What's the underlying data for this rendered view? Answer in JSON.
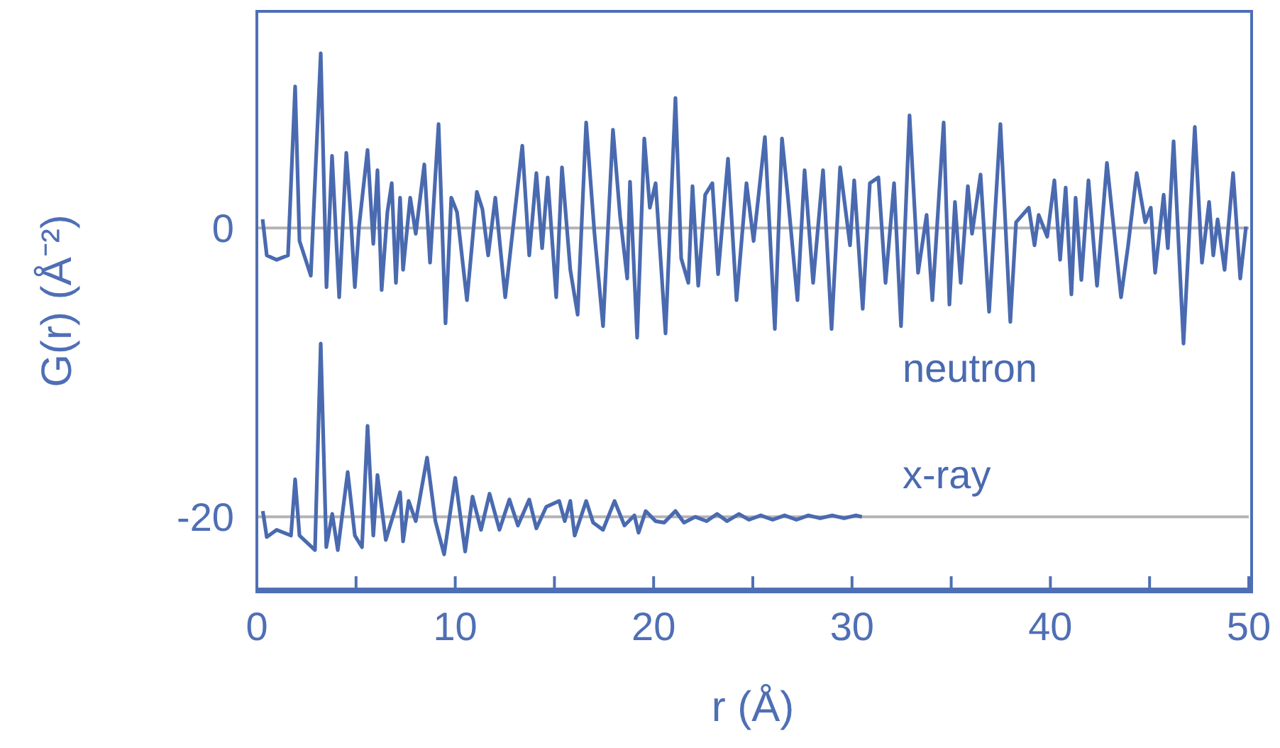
{
  "chart_data": {
    "type": "line",
    "xlabel": "r (Å)",
    "ylabel": "G(r) (Å⁻²)",
    "xlim": [
      0,
      50
    ],
    "xticks": [
      0,
      {
        "value": 5,
        "label": null
      },
      10,
      {
        "value": 15,
        "label": null
      },
      20,
      {
        "value": 25,
        "label": null
      },
      30,
      {
        "value": 35,
        "label": null
      },
      40,
      {
        "value": 45,
        "label": null
      },
      50
    ],
    "ylim": [
      -25,
      15
    ],
    "yticks": [
      -20,
      0
    ],
    "grid": false,
    "legend": false,
    "ref_lines": [
      {
        "axis": "y",
        "value": 0,
        "color": "#b4b4b4"
      },
      {
        "axis": "y",
        "value": -20,
        "color": "#b4b4b4"
      }
    ],
    "series": [
      {
        "name": "neutron",
        "color": "#4a6ab0",
        "x": [
          0.29,
          0.5,
          1.0,
          1.57,
          1.93,
          2.15,
          2.72,
          3.22,
          3.51,
          3.79,
          4.15,
          4.51,
          4.72,
          4.94,
          5.15,
          5.58,
          5.87,
          6.08,
          6.29,
          6.58,
          6.8,
          7.01,
          7.22,
          7.37,
          7.73,
          8.01,
          8.44,
          8.73,
          9.16,
          9.51,
          9.8,
          10.09,
          10.59,
          11.09,
          11.37,
          11.66,
          12.02,
          12.52,
          13.38,
          13.73,
          14.09,
          14.38,
          14.66,
          15.09,
          15.38,
          15.8,
          16.17,
          16.6,
          17.02,
          17.45,
          17.95,
          18.31,
          18.67,
          18.81,
          19.17,
          19.53,
          19.81,
          20.1,
          20.6,
          21.1,
          21.39,
          21.75,
          21.96,
          22.25,
          22.6,
          22.96,
          23.25,
          23.75,
          24.18,
          24.68,
          25.04,
          25.61,
          26.11,
          26.47,
          26.75,
          27.25,
          27.61,
          28.04,
          28.54,
          28.97,
          29.4,
          29.9,
          30.11,
          30.54,
          30.9,
          31.33,
          31.69,
          32.12,
          32.47,
          32.9,
          33.33,
          33.76,
          34.05,
          34.62,
          34.91,
          35.19,
          35.48,
          35.84,
          36.05,
          36.48,
          36.91,
          37.48,
          37.98,
          38.27,
          38.91,
          39.2,
          39.41,
          39.84,
          40.2,
          40.49,
          40.77,
          41.06,
          41.27,
          41.56,
          41.92,
          42.35,
          42.85,
          43.56,
          43.92,
          44.35,
          44.78,
          45.06,
          45.28,
          45.71,
          45.92,
          46.21,
          46.71,
          47.28,
          47.64,
          48.0,
          48.21,
          48.43,
          48.78,
          49.21,
          49.57,
          49.86
        ],
        "values": [
          0.6,
          -1.9,
          -2.2,
          -1.9,
          9.8,
          -0.9,
          -3.3,
          12.1,
          -4.1,
          5.0,
          -4.8,
          5.2,
          1.1,
          -4.1,
          0.1,
          5.4,
          -1.1,
          4.0,
          -4.3,
          1.1,
          3.1,
          -3.8,
          2.1,
          -2.9,
          2.1,
          -0.4,
          4.4,
          -2.4,
          7.2,
          -6.6,
          2.1,
          1.1,
          -5.0,
          2.5,
          1.3,
          -1.9,
          2.1,
          -4.8,
          5.7,
          -1.9,
          3.8,
          -1.4,
          3.5,
          -4.8,
          4.2,
          -2.9,
          -6.0,
          7.3,
          -0.4,
          -6.8,
          6.8,
          0.8,
          -3.5,
          3.2,
          -7.6,
          6.2,
          1.4,
          3.1,
          -7.3,
          9.0,
          -2.1,
          -3.8,
          2.9,
          -4.0,
          2.3,
          3.1,
          -3.2,
          4.8,
          -5.0,
          3.1,
          -0.9,
          6.3,
          -7.0,
          6.2,
          2.4,
          -5.0,
          4.0,
          -3.8,
          4.0,
          -7.0,
          4.2,
          -1.2,
          3.3,
          -5.6,
          3.1,
          3.5,
          -3.8,
          3.1,
          -6.8,
          7.8,
          -3.1,
          0.9,
          -5.0,
          7.3,
          -5.3,
          1.8,
          -3.8,
          2.9,
          -0.4,
          3.7,
          -5.8,
          7.2,
          -6.5,
          0.4,
          1.4,
          -1.2,
          0.9,
          -0.6,
          3.3,
          -2.2,
          2.8,
          -4.6,
          2.1,
          -3.6,
          3.3,
          -4.0,
          4.5,
          -4.8,
          -1.2,
          3.8,
          0.4,
          1.4,
          -3.1,
          2.3,
          -1.4,
          6.0,
          -8.0,
          7.0,
          -2.4,
          1.8,
          -1.9,
          0.6,
          -2.9,
          3.8,
          -3.5,
          0.1
        ]
      },
      {
        "name": "x-ray",
        "color": "#4a6ab0",
        "x": [
          0.3,
          0.5,
          1.0,
          1.72,
          1.93,
          2.15,
          2.93,
          3.22,
          3.5,
          3.8,
          4.08,
          4.58,
          4.94,
          5.3,
          5.58,
          5.87,
          6.08,
          6.5,
          6.94,
          7.22,
          7.37,
          7.65,
          8.01,
          8.58,
          9.0,
          9.44,
          10.0,
          10.5,
          10.87,
          11.3,
          11.73,
          12.23,
          12.73,
          13.16,
          13.73,
          14.09,
          14.59,
          15.24,
          15.52,
          15.8,
          16.02,
          16.6,
          16.95,
          17.45,
          18.03,
          18.53,
          19.03,
          19.24,
          19.6,
          20.1,
          20.53,
          21.1,
          21.53,
          22.1,
          22.67,
          23.2,
          23.7,
          24.3,
          24.8,
          25.4,
          26.0,
          26.6,
          27.2,
          27.8,
          28.4,
          29.0,
          29.6,
          30.2,
          30.5
        ],
        "values": [
          -19.6,
          -21.4,
          -20.9,
          -21.3,
          -17.4,
          -21.3,
          -22.3,
          -8.0,
          -22.1,
          -19.8,
          -22.3,
          -16.9,
          -21.3,
          -22.1,
          -13.7,
          -21.3,
          -17.1,
          -21.6,
          -19.6,
          -18.3,
          -21.7,
          -18.9,
          -20.3,
          -15.9,
          -20.3,
          -22.6,
          -17.3,
          -22.4,
          -18.6,
          -20.9,
          -18.4,
          -20.9,
          -18.8,
          -20.6,
          -18.8,
          -20.8,
          -19.3,
          -18.9,
          -20.3,
          -18.9,
          -21.3,
          -18.9,
          -20.4,
          -20.9,
          -18.9,
          -20.6,
          -19.9,
          -21.1,
          -19.6,
          -20.3,
          -20.4,
          -19.6,
          -20.4,
          -20.0,
          -20.3,
          -19.8,
          -20.3,
          -19.8,
          -20.2,
          -19.9,
          -20.2,
          -19.9,
          -20.2,
          -19.9,
          -20.1,
          -19.9,
          -20.1,
          -19.9,
          -20.0
        ]
      }
    ]
  }
}
